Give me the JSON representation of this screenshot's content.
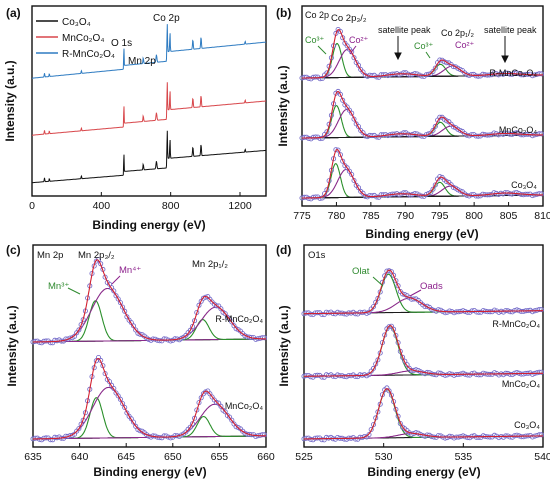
{
  "colors": {
    "black": "#111111",
    "red": "#d8474b",
    "blue": "#2f7cc2",
    "fit": "#1b1b1b",
    "envelope": "#d22030",
    "green": "#2a8f2a",
    "purple": "#8a2a8a",
    "marker": "#6c63c6",
    "annotGreen": "#2f8a2f",
    "annotPurple": "#8b1f8b"
  },
  "chart_data": [
    {
      "panel": "(a)",
      "type": "line",
      "xlabel": "Binding energy (eV)",
      "ylabel": "Intensity (a.u.)",
      "xlim": [
        0,
        1350
      ],
      "xticks": [
        0,
        400,
        800,
        1200
      ],
      "legend": [
        {
          "label": "Co₃O₄",
          "color": "#111111"
        },
        {
          "label": "MnCo₂O₄",
          "color": "#d8474b"
        },
        {
          "label": "R-MnCo₂O₄",
          "color": "#2f7cc2"
        }
      ],
      "annotations": [
        "O 1s",
        "Mn 2p",
        "Co 2p"
      ],
      "series": [
        {
          "name": "Co₃O₄",
          "baseline": 0.07,
          "slope": 0.1
        },
        {
          "name": "MnCo₂O₄",
          "baseline": 0.32,
          "slope": 0.11
        },
        {
          "name": "R-MnCo₂O₄",
          "baseline": 0.62,
          "slope": 0.12
        }
      ],
      "peaks": [
        {
          "x": 530,
          "h": 0.12,
          "w": 3
        },
        {
          "x": 642,
          "h": 0.03,
          "w": 5
        },
        {
          "x": 780,
          "h": 0.16,
          "w": 4
        },
        {
          "x": 796,
          "h": 0.1,
          "w": 4
        },
        {
          "x": 72,
          "h": 0.02,
          "w": 4
        },
        {
          "x": 100,
          "h": 0.015,
          "w": 4
        },
        {
          "x": 285,
          "h": 0.015,
          "w": 4
        },
        {
          "x": 718,
          "h": 0.04,
          "w": 6
        },
        {
          "x": 928,
          "h": 0.05,
          "w": 5
        },
        {
          "x": 975,
          "h": 0.06,
          "w": 5
        },
        {
          "x": 1230,
          "h": 0.015,
          "w": 4
        }
      ]
    },
    {
      "panel": "(b)",
      "title": "Co 2p",
      "type": "line",
      "xlabel": "Binding energy (eV)",
      "ylabel": "Intensity (a.u.)",
      "xlim": [
        775,
        810
      ],
      "xticks": [
        775,
        780,
        785,
        790,
        795,
        800,
        805,
        810
      ],
      "annotations": [
        "Co 2p₃/₂",
        "Co 2p₁/₂",
        "satellite peak",
        "satellite peak",
        "Co³⁺",
        "Co²⁺",
        "Co³⁺",
        "Co²⁺"
      ],
      "series": [
        {
          "name": "R-MnCo₂O₄",
          "offset": 0.64,
          "components": [
            {
              "center": 780.1,
              "height": 0.17,
              "fwhm": 1.6,
              "color": "green"
            },
            {
              "center": 781.6,
              "height": 0.14,
              "fwhm": 2.8,
              "color": "purple"
            },
            {
              "center": 795.1,
              "height": 0.06,
              "fwhm": 1.8,
              "color": "green"
            },
            {
              "center": 796.8,
              "height": 0.05,
              "fwhm": 2.8,
              "color": "purple"
            },
            {
              "center": 789.5,
              "height": 0.015,
              "fwhm": 5,
              "color": "fit"
            },
            {
              "center": 804.5,
              "height": 0.01,
              "fwhm": 5,
              "color": "fit"
            }
          ]
        },
        {
          "name": "MnCo₂O₄",
          "offset": 0.34,
          "components": [
            {
              "center": 780.0,
              "height": 0.16,
              "fwhm": 1.6,
              "color": "green"
            },
            {
              "center": 781.5,
              "height": 0.14,
              "fwhm": 2.8,
              "color": "purple"
            },
            {
              "center": 795.1,
              "height": 0.07,
              "fwhm": 1.8,
              "color": "green"
            },
            {
              "center": 796.6,
              "height": 0.05,
              "fwhm": 2.8,
              "color": "purple"
            },
            {
              "center": 789.5,
              "height": 0.015,
              "fwhm": 5,
              "color": "fit"
            },
            {
              "center": 804.5,
              "height": 0.01,
              "fwhm": 5,
              "color": "fit"
            }
          ]
        },
        {
          "name": "Co₃O₄",
          "offset": 0.04,
          "components": [
            {
              "center": 779.9,
              "height": 0.17,
              "fwhm": 1.6,
              "color": "green"
            },
            {
              "center": 781.4,
              "height": 0.14,
              "fwhm": 2.8,
              "color": "purple"
            },
            {
              "center": 795.0,
              "height": 0.07,
              "fwhm": 1.8,
              "color": "green"
            },
            {
              "center": 796.5,
              "height": 0.05,
              "fwhm": 2.8,
              "color": "purple"
            },
            {
              "center": 789.5,
              "height": 0.015,
              "fwhm": 5,
              "color": "fit"
            },
            {
              "center": 804.5,
              "height": 0.012,
              "fwhm": 5,
              "color": "fit"
            }
          ]
        }
      ]
    },
    {
      "panel": "(c)",
      "title": "Mn 2p",
      "type": "line",
      "xlabel": "Binding energy (eV)",
      "ylabel": "Intensity (a.u.)",
      "xlim": [
        635,
        660
      ],
      "xticks": [
        635,
        640,
        645,
        650,
        655,
        660
      ],
      "annotations": [
        "Mn 2p₃/₂",
        "Mn 2p₁/₂",
        "Mn³⁺",
        "Mn⁴⁺"
      ],
      "series": [
        {
          "name": "R-MnCo₂O₄",
          "offset": 0.52,
          "components": [
            {
              "center": 641.7,
              "height": 0.2,
              "fwhm": 1.6,
              "color": "green"
            },
            {
              "center": 643.0,
              "height": 0.26,
              "fwhm": 4.0,
              "color": "purple"
            },
            {
              "center": 653.2,
              "height": 0.1,
              "fwhm": 1.6,
              "color": "green"
            },
            {
              "center": 654.6,
              "height": 0.16,
              "fwhm": 3.6,
              "color": "purple"
            }
          ]
        },
        {
          "name": "MnCo₂O₄",
          "offset": 0.04,
          "components": [
            {
              "center": 641.8,
              "height": 0.2,
              "fwhm": 1.6,
              "color": "green"
            },
            {
              "center": 643.1,
              "height": 0.25,
              "fwhm": 4.0,
              "color": "purple"
            },
            {
              "center": 653.3,
              "height": 0.1,
              "fwhm": 1.6,
              "color": "green"
            },
            {
              "center": 654.5,
              "height": 0.16,
              "fwhm": 3.6,
              "color": "purple"
            }
          ]
        }
      ]
    },
    {
      "panel": "(d)",
      "title": "O1s",
      "type": "line",
      "xlabel": "Binding energy (eV)",
      "ylabel": "Intensity (a.u.)",
      "xlim": [
        525,
        540
      ],
      "xticks": [
        525,
        530,
        535,
        540
      ],
      "annotations": [
        "Olat",
        "Oads"
      ],
      "series": [
        {
          "name": "R-MnCo₂O₄",
          "offset": 0.66,
          "components": [
            {
              "center": 530.3,
              "height": 0.19,
              "fwhm": 1.1,
              "color": "green"
            },
            {
              "center": 531.6,
              "height": 0.07,
              "fwhm": 1.9,
              "color": "purple"
            }
          ]
        },
        {
          "name": "MnCo₂O₄",
          "offset": 0.35,
          "components": [
            {
              "center": 530.4,
              "height": 0.24,
              "fwhm": 1.2,
              "color": "green"
            },
            {
              "center": 531.7,
              "height": 0.02,
              "fwhm": 1.9,
              "color": "purple"
            }
          ]
        },
        {
          "name": "Co₃O₄",
          "offset": 0.04,
          "components": [
            {
              "center": 530.2,
              "height": 0.24,
              "fwhm": 1.2,
              "color": "green"
            },
            {
              "center": 531.7,
              "height": 0.02,
              "fwhm": 1.9,
              "color": "purple"
            }
          ]
        }
      ]
    }
  ]
}
